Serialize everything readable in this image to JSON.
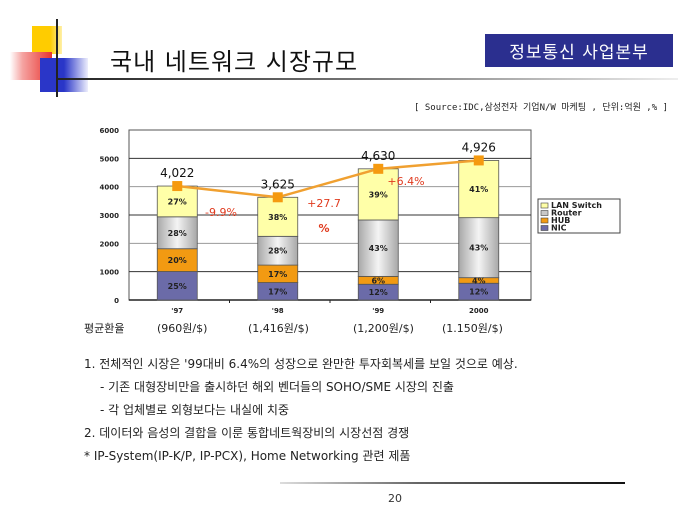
{
  "header": {
    "title": "국내 네트워크 시장규모",
    "department": "정보통신 사업본부"
  },
  "source_note": "[ Source:IDC,삼성전자 기업N/W 마케팅 , 단위:억원 ,% ]",
  "chart_data": {
    "type": "bar",
    "stacked": true,
    "title": "",
    "xlabel": "",
    "ylabel": "",
    "ylim": [
      0,
      6000
    ],
    "yticks": [
      0,
      1000,
      2000,
      3000,
      4000,
      5000,
      6000
    ],
    "ytick_labels": [
      "0",
      "1000",
      "2000",
      "3000",
      "4000",
      "5000",
      "6000"
    ],
    "grid": true,
    "legend_position": "right",
    "categories": [
      "'97",
      "'98",
      "'99",
      "2000"
    ],
    "series": [
      {
        "name": "NIC",
        "color": "#6b6ba8",
        "percent": [
          25,
          17,
          12,
          12
        ]
      },
      {
        "name": "HUB",
        "color": "#f29a12",
        "percent": [
          20,
          17,
          6,
          4
        ]
      },
      {
        "name": "Router",
        "color": "#c8c8c8",
        "percent": [
          28,
          28,
          43,
          43
        ]
      },
      {
        "name": "LAN Switch",
        "color": "#ffffa8",
        "percent": [
          27,
          38,
          39,
          41
        ]
      }
    ],
    "totals": [
      4022,
      3625,
      4630,
      4926
    ],
    "total_labels": [
      "4,022",
      "3,625",
      "4,630",
      "4,926"
    ],
    "total_line": {
      "color": "#f0a030",
      "marker_color": "#f59a10"
    },
    "growth_labels": [
      "-9.9%",
      "+27.7 %",
      "+6.4%"
    ],
    "growth_color": "#e03a1e"
  },
  "exchange_rate": {
    "label": "평균환율",
    "values": [
      "(960원/$)",
      "(1,416원/$)",
      "(1,200원/$)",
      "(1.150원/$)"
    ]
  },
  "bullets": [
    {
      "text": "1. 전체적인 시장은 '99대비 6.4%의 성장으로 완만한 투자회복세를 보일 것으로 예상.",
      "indent": false
    },
    {
      "text": "- 기존 대형장비만을 출시하던 해외 벤더들의 SOHO/SME 시장의 진출",
      "indent": true
    },
    {
      "text": "- 각 업체별로 외형보다는 내실에 치중",
      "indent": true
    },
    {
      "text": "2. 데이터와 음성의 결합을 이룬 통합네트웍장비의 시장선점 경쟁",
      "indent": false
    },
    {
      "text": "* IP-System(IP-K/P, IP-PCX), Home Networking 관련 제품",
      "indent": false
    }
  ],
  "page_number": "20"
}
